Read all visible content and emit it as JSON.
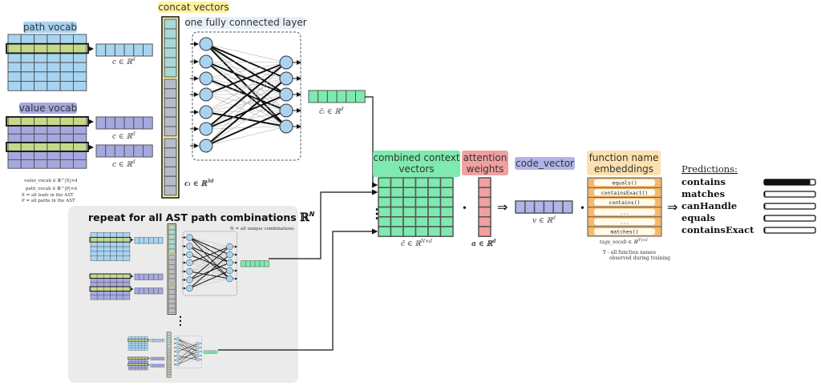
{
  "labels": {
    "path_vocab": "path vocab",
    "value_vocab": "value vocab",
    "concat_vectors": "concat vectors",
    "fc_layer": "one fully connected layer",
    "combined_context_1": "combined context",
    "combined_context_2": "vectors",
    "attention_1": "attention",
    "attention_2": "weights",
    "code_vector": "code_vector",
    "fn_embeddings_1": "function name",
    "fn_embeddings_2": "embeddings",
    "repeat_title": "repeat for all AST path combinations",
    "repeat_set": "ℝ",
    "repeat_set_sup": "N",
    "unique_note": "N = all unique combinations"
  },
  "math": {
    "c_path": {
      "base": "c ∈ ℝ",
      "sup": "d"
    },
    "c_value1": {
      "base": "c ∈ ℝ",
      "sup": "d"
    },
    "c_value2": {
      "base": "c ∈ ℝ",
      "sup": "d"
    },
    "c_i": {
      "base": "cᵢ ∈ ℝ",
      "sup": "3d"
    },
    "c_tilde_i": {
      "base": "c̃ᵢ ∈ ℝ",
      "sup": "d"
    },
    "c_tilde": {
      "base": "c̃ ∈ ℝ",
      "sup": "N×d"
    },
    "a": {
      "base": "a ∈ ℝ",
      "sup": "d"
    },
    "v": {
      "base": "v ∈ ℝ",
      "sup": "d"
    },
    "tags_vocab": {
      "base": "tags_vocab ∈ ℝ",
      "sup": "|Y|×d"
    }
  },
  "notes": {
    "value_vocab": "value_vocab ∈ ℝ^|X|×d",
    "path_vocab": "path_vocab ∈ ℝ^|P|×d",
    "x_def": "X = all leafs in the AST",
    "p_def": "P = all paths in the AST",
    "y_def_1": "Y - all function names",
    "y_def_2": "observed during training"
  },
  "operators": {
    "dot": "•",
    "implies": "⇒",
    "vdots": "⋮"
  },
  "function_names": [
    "equals()",
    "containsExact()",
    "contains()",
    "...",
    "...",
    "matches()"
  ],
  "predictions": {
    "title": "Predictions:",
    "items": [
      {
        "name": "contains",
        "score": 0.9
      },
      {
        "name": "matches",
        "score": 0.02
      },
      {
        "name": "canHandle",
        "score": 0.0
      },
      {
        "name": "equals",
        "score": 0.0
      },
      {
        "name": "containsExact",
        "score": 0.0
      }
    ]
  },
  "colors": {
    "path": "#a8d4f2",
    "value": "#a6a8e0",
    "highlight": "#c5d98a",
    "concat": "#fff3a0",
    "teal": "#a9d9d6",
    "gray": "#b7bcc9",
    "neuron": "#a9d4f0",
    "green": "#7eeaaf",
    "attention": "#f0a0a0",
    "code": "#b0b4e8",
    "orange": "#f6b96a",
    "fnlabel": "#fde0b0",
    "panel": "#ebebeb"
  }
}
